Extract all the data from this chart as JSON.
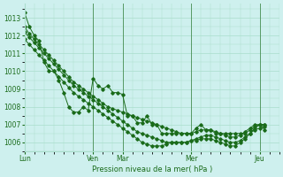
{
  "background_color": "#cef0ee",
  "grid_color": "#aaddcc",
  "line_color": "#1a6b1a",
  "ylabel_ticks": [
    1006,
    1007,
    1008,
    1009,
    1010,
    1011,
    1012,
    1013
  ],
  "ylim": [
    1005.5,
    1013.8
  ],
  "xlabel": "Pression niveau de la mer( hPa )",
  "day_labels": [
    "Lun",
    "Ven",
    "Mar",
    "Mer",
    "Jeu"
  ],
  "day_positions": [
    0,
    14,
    20,
    34,
    48
  ],
  "x_range": [
    0,
    52
  ],
  "series": [
    [
      1013.3,
      1012.5,
      1012.0,
      1011.7,
      1010.5,
      1010.0,
      1010.0,
      1009.5,
      1008.8,
      1008.0,
      1007.7,
      1007.7,
      1008.0,
      1007.8,
      1009.6,
      1009.2,
      1009.0,
      1009.2,
      1008.8,
      1008.8,
      1008.7,
      1007.5,
      1007.5,
      1007.1,
      1007.1,
      1007.5,
      1007.0,
      1007.0,
      1006.5,
      1006.5,
      1006.5,
      1006.5,
      1006.5,
      1006.5,
      1006.5,
      1006.8,
      1007.0,
      1006.7,
      1006.7,
      1006.5,
      1006.5,
      1006.5,
      1006.5,
      1006.5,
      1006.5,
      1006.5,
      1006.7,
      1006.9,
      1007.0,
      1006.7
    ],
    [
      1012.5,
      1012.1,
      1011.8,
      1011.5,
      1011.2,
      1010.9,
      1010.6,
      1010.3,
      1010.0,
      1009.7,
      1009.4,
      1009.2,
      1009.0,
      1008.8,
      1008.6,
      1008.4,
      1008.2,
      1008.0,
      1007.9,
      1007.8,
      1007.7,
      1007.6,
      1007.5,
      1007.4,
      1007.3,
      1007.2,
      1007.1,
      1007.0,
      1006.9,
      1006.8,
      1006.7,
      1006.6,
      1006.5,
      1006.5,
      1006.5,
      1006.6,
      1006.7,
      1006.7,
      1006.7,
      1006.6,
      1006.5,
      1006.4,
      1006.3,
      1006.3,
      1006.4,
      1006.6,
      1006.8,
      1007.0,
      1007.0,
      1007.0
    ],
    [
      1012.2,
      1011.9,
      1011.6,
      1011.3,
      1011.0,
      1010.7,
      1010.4,
      1010.1,
      1009.8,
      1009.5,
      1009.2,
      1009.0,
      1008.8,
      1008.6,
      1008.4,
      1008.2,
      1008.0,
      1007.8,
      1007.6,
      1007.4,
      1007.2,
      1007.0,
      1006.8,
      1006.6,
      1006.5,
      1006.4,
      1006.3,
      1006.2,
      1006.1,
      1006.0,
      1006.0,
      1006.0,
      1006.0,
      1006.0,
      1006.1,
      1006.2,
      1006.3,
      1006.4,
      1006.4,
      1006.3,
      1006.2,
      1006.1,
      1006.0,
      1006.0,
      1006.1,
      1006.3,
      1006.5,
      1006.7,
      1006.8,
      1006.9
    ],
    [
      1011.8,
      1011.5,
      1011.2,
      1010.9,
      1010.6,
      1010.3,
      1010.0,
      1009.7,
      1009.4,
      1009.1,
      1008.8,
      1008.6,
      1008.4,
      1008.2,
      1008.0,
      1007.8,
      1007.6,
      1007.4,
      1007.2,
      1007.0,
      1006.8,
      1006.6,
      1006.4,
      1006.2,
      1006.0,
      1005.9,
      1005.8,
      1005.8,
      1005.8,
      1005.9,
      1006.0,
      1006.0,
      1006.0,
      1006.0,
      1006.1,
      1006.1,
      1006.2,
      1006.2,
      1006.2,
      1006.1,
      1006.0,
      1005.9,
      1005.8,
      1005.8,
      1006.0,
      1006.2,
      1006.5,
      1006.8,
      1007.0,
      1007.0
    ]
  ],
  "n_points": 50
}
